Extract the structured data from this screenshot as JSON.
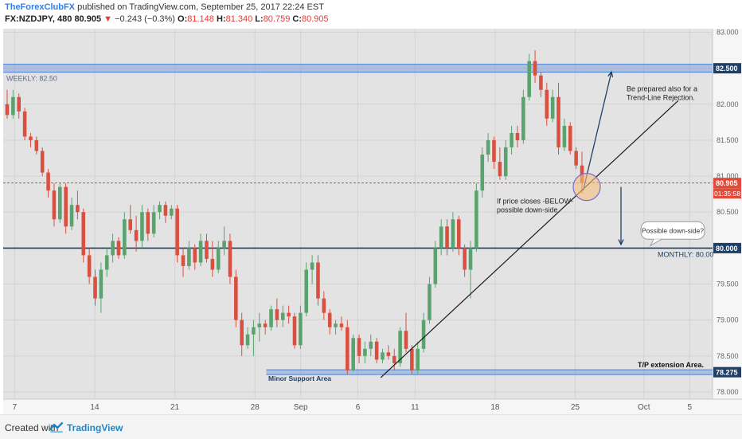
{
  "header": {
    "author": "TheForexClubFX",
    "published_text": "published on TradingView.com, September 25, 2017 22:24 EST",
    "symbol_interval": "FX:NZDJPY, 480",
    "last": "80.905",
    "change": "−0.243 (−0.3%)",
    "o_label": "O:",
    "o": "81.148",
    "h_label": "H:",
    "h": "81.340",
    "l_label": "L:",
    "l": "80.759",
    "c_label": "C:",
    "c": "80.905"
  },
  "footer": {
    "created_with": "Created with",
    "brand": "TradingView"
  },
  "colors": {
    "background": "#e3e3e3",
    "up": "#5aa36f",
    "down": "#d95041",
    "blue_zone": "#4a7fd4",
    "level_line": "#1f3f66",
    "price_line": "#e04b3a"
  },
  "chart_data": {
    "type": "candlestick",
    "symbol": "FX:NZDJPY",
    "interval": "480",
    "ylim": [
      77.9,
      83.05
    ],
    "y_ticks": [
      "78.000",
      "78.500",
      "79.000",
      "79.500",
      "80.000",
      "80.500",
      "81.000",
      "81.500",
      "82.000",
      "82.500",
      "83.000"
    ],
    "x_ticks": [
      {
        "label": "7",
        "date": "2017-08-07"
      },
      {
        "label": "14",
        "date": "2017-08-14"
      },
      {
        "label": "21",
        "date": "2017-08-21"
      },
      {
        "label": "28",
        "date": "2017-08-28"
      },
      {
        "label": "Sep",
        "date": "2017-09-01"
      },
      {
        "label": "6",
        "date": "2017-09-06"
      },
      {
        "label": "11",
        "date": "2017-09-11"
      },
      {
        "label": "18",
        "date": "2017-09-18"
      },
      {
        "label": "25",
        "date": "2017-09-25"
      },
      {
        "label": "Oct",
        "date": "2017-10-01"
      },
      {
        "label": "5",
        "date": "2017-10-05"
      }
    ],
    "date_start": "2017-08-06",
    "date_end": "2017-10-07",
    "candles": [
      [
        82.0,
        82.2,
        81.8,
        81.85
      ],
      [
        81.85,
        82.2,
        81.8,
        82.1
      ],
      [
        82.1,
        82.15,
        81.8,
        81.9
      ],
      [
        81.9,
        81.95,
        81.5,
        81.55
      ],
      [
        81.55,
        81.6,
        81.4,
        81.5
      ],
      [
        81.5,
        81.55,
        81.3,
        81.35
      ],
      [
        81.35,
        81.4,
        81.0,
        81.05
      ],
      [
        81.05,
        81.1,
        80.7,
        80.8
      ],
      [
        80.8,
        80.9,
        80.3,
        80.4
      ],
      [
        80.4,
        80.9,
        80.35,
        80.85
      ],
      [
        80.85,
        80.9,
        80.2,
        80.3
      ],
      [
        80.3,
        80.7,
        80.25,
        80.6
      ],
      [
        80.6,
        80.8,
        80.4,
        80.5
      ],
      [
        80.5,
        80.55,
        79.8,
        79.9
      ],
      [
        79.9,
        80.0,
        79.5,
        79.6
      ],
      [
        79.6,
        79.7,
        79.2,
        79.3
      ],
      [
        79.3,
        79.8,
        79.1,
        79.7
      ],
      [
        79.7,
        80.0,
        79.6,
        79.9
      ],
      [
        79.9,
        80.2,
        79.8,
        80.1
      ],
      [
        80.1,
        80.15,
        79.85,
        79.9
      ],
      [
        79.9,
        80.5,
        79.85,
        80.4
      ],
      [
        80.4,
        80.6,
        80.2,
        80.25
      ],
      [
        80.25,
        80.45,
        79.95,
        80.1
      ],
      [
        80.1,
        80.6,
        80.0,
        80.5
      ],
      [
        80.5,
        80.55,
        80.1,
        80.2
      ],
      [
        80.2,
        80.6,
        80.15,
        80.5
      ],
      [
        80.5,
        80.65,
        80.4,
        80.6
      ],
      [
        80.6,
        80.65,
        80.35,
        80.45
      ],
      [
        80.45,
        80.6,
        80.4,
        80.55
      ],
      [
        80.55,
        80.6,
        79.8,
        79.9
      ],
      [
        79.9,
        80.0,
        79.6,
        79.75
      ],
      [
        79.75,
        80.1,
        79.7,
        80.0
      ],
      [
        80.0,
        80.05,
        79.7,
        79.8
      ],
      [
        79.8,
        80.2,
        79.75,
        80.1
      ],
      [
        80.1,
        80.2,
        79.8,
        79.85
      ],
      [
        79.85,
        80.1,
        79.6,
        79.7
      ],
      [
        79.7,
        80.1,
        79.65,
        80.0
      ],
      [
        80.0,
        80.3,
        79.9,
        80.1
      ],
      [
        80.1,
        80.2,
        79.5,
        79.6
      ],
      [
        79.6,
        79.7,
        78.9,
        79.0
      ],
      [
        79.0,
        79.1,
        78.5,
        78.65
      ],
      [
        78.65,
        78.9,
        78.6,
        78.8
      ],
      [
        78.8,
        79.0,
        78.5,
        78.9
      ],
      [
        78.9,
        79.1,
        78.7,
        78.95
      ],
      [
        78.95,
        79.0,
        78.8,
        78.9
      ],
      [
        78.9,
        79.2,
        78.85,
        79.15
      ],
      [
        79.15,
        79.3,
        78.9,
        79.0
      ],
      [
        79.0,
        79.2,
        78.9,
        79.1
      ],
      [
        79.1,
        79.2,
        78.95,
        79.05
      ],
      [
        79.05,
        79.1,
        78.6,
        78.65
      ],
      [
        78.65,
        79.2,
        78.6,
        79.1
      ],
      [
        79.1,
        79.8,
        79.05,
        79.7
      ],
      [
        79.7,
        79.9,
        79.5,
        79.8
      ],
      [
        79.8,
        79.9,
        79.2,
        79.3
      ],
      [
        79.3,
        79.4,
        79.0,
        79.1
      ],
      [
        79.1,
        79.15,
        78.8,
        78.9
      ],
      [
        78.9,
        79.0,
        78.8,
        78.95
      ],
      [
        78.95,
        79.05,
        78.85,
        78.9
      ],
      [
        78.9,
        79.0,
        78.25,
        78.3
      ],
      [
        78.3,
        78.8,
        78.28,
        78.75
      ],
      [
        78.75,
        78.8,
        78.4,
        78.5
      ],
      [
        78.5,
        78.7,
        78.4,
        78.6
      ],
      [
        78.6,
        78.8,
        78.5,
        78.7
      ],
      [
        78.7,
        78.75,
        78.4,
        78.45
      ],
      [
        78.45,
        78.6,
        78.4,
        78.55
      ],
      [
        78.55,
        78.65,
        78.45,
        78.5
      ],
      [
        78.5,
        78.6,
        78.3,
        78.4
      ],
      [
        78.4,
        78.9,
        78.35,
        78.85
      ],
      [
        78.85,
        79.1,
        78.55,
        78.6
      ],
      [
        78.6,
        78.65,
        78.25,
        78.3
      ],
      [
        78.3,
        78.7,
        78.25,
        78.6
      ],
      [
        78.6,
        79.1,
        78.55,
        79.0
      ],
      [
        79.0,
        79.6,
        78.95,
        79.5
      ],
      [
        79.5,
        80.1,
        79.45,
        80.0
      ],
      [
        80.0,
        80.4,
        79.9,
        80.3
      ],
      [
        80.3,
        80.4,
        79.9,
        80.0
      ],
      [
        80.0,
        80.5,
        79.95,
        80.4
      ],
      [
        80.4,
        80.45,
        79.9,
        80.0
      ],
      [
        80.0,
        80.05,
        79.6,
        79.7
      ],
      [
        79.7,
        80.1,
        79.3,
        80.0
      ],
      [
        80.0,
        80.9,
        79.95,
        80.8
      ],
      [
        80.8,
        81.4,
        80.7,
        81.3
      ],
      [
        81.3,
        81.6,
        81.2,
        81.5
      ],
      [
        81.5,
        81.55,
        81.1,
        81.2
      ],
      [
        81.2,
        81.4,
        80.95,
        81.0
      ],
      [
        81.0,
        81.5,
        80.95,
        81.4
      ],
      [
        81.4,
        81.7,
        81.3,
        81.6
      ],
      [
        81.6,
        81.7,
        81.4,
        81.5
      ],
      [
        81.5,
        82.2,
        81.45,
        82.1
      ],
      [
        82.1,
        82.7,
        82.05,
        82.6
      ],
      [
        82.6,
        82.75,
        82.3,
        82.4
      ],
      [
        82.4,
        82.45,
        82.1,
        82.2
      ],
      [
        82.2,
        82.3,
        81.7,
        81.8
      ],
      [
        81.8,
        82.2,
        81.75,
        82.1
      ],
      [
        82.1,
        82.3,
        81.3,
        81.4
      ],
      [
        81.4,
        81.8,
        81.35,
        81.7
      ],
      [
        81.7,
        81.75,
        81.3,
        81.35
      ],
      [
        81.35,
        81.4,
        81.1,
        81.15
      ],
      [
        81.148,
        81.34,
        80.759,
        80.905
      ]
    ],
    "levels": {
      "weekly": {
        "label": "WEEKLY: 82.50",
        "value": 82.5,
        "axis_label": "82.500"
      },
      "monthly": {
        "label": "MONTHLY: 80.00",
        "value": 80.0,
        "axis_label": "80.000"
      },
      "support": {
        "label": "Minor Support Area",
        "value": 78.275,
        "axis_label": "78.275"
      },
      "tp": {
        "label": "T/P extension Area."
      }
    },
    "last_price": {
      "value": 80.905,
      "label": "80.905",
      "countdown": "01:35:58"
    },
    "trendline": {
      "from": [
        "2017-09-08",
        78.2
      ],
      "to": [
        "2017-10-04",
        82.05
      ]
    },
    "arrows": [
      {
        "from": [
          "2017-09-25",
          80.8
        ],
        "to": [
          "2017-09-29",
          82.45
        ]
      },
      {
        "from": [
          "2017-09-29",
          80.85
        ],
        "to": [
          "2017-09-29",
          80.05
        ]
      }
    ],
    "annotations": {
      "upside": [
        "Be prepared also for a",
        "Trend-Line Rejection."
      ],
      "downside": [
        "If price closes -BELOW-",
        "possible down-side."
      ],
      "callout": "Possible down-side?"
    }
  }
}
